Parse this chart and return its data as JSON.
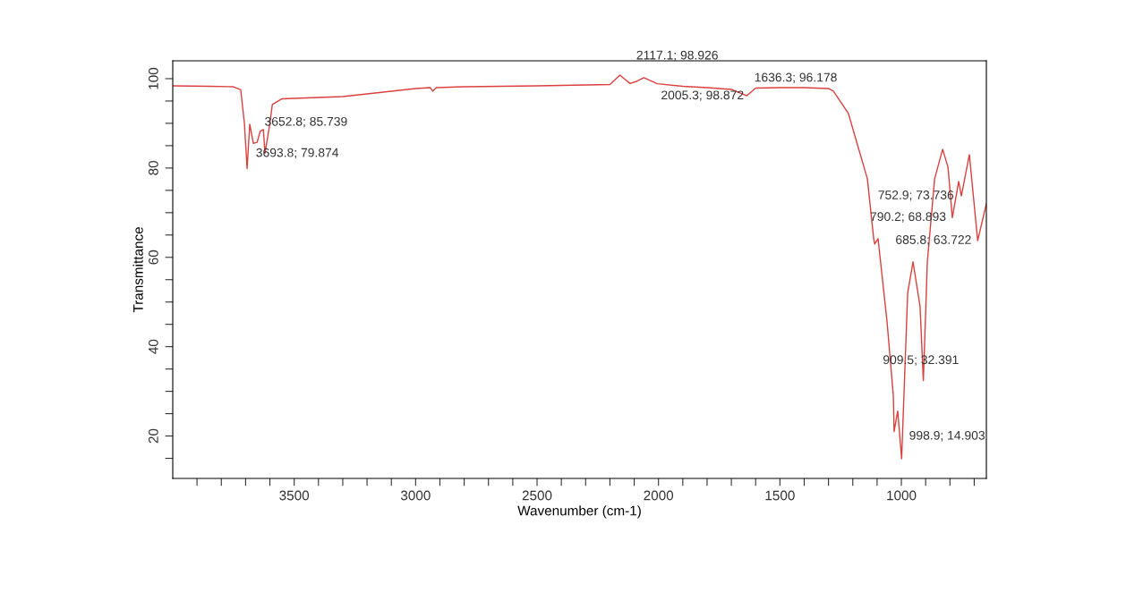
{
  "chart_data": {
    "type": "line",
    "xlabel": "Wavenumber (cm-1)",
    "ylabel": "Transmittance",
    "x": [
      4000,
      3850,
      3752,
      3720,
      3705,
      3693.8,
      3683,
      3668,
      3652.8,
      3640,
      3627,
      3620,
      3600,
      3590,
      3550,
      3500,
      3300,
      3100,
      3000,
      2940,
      2930,
      2915,
      2800,
      2500,
      2300,
      2200,
      2159,
      2117.1,
      2090,
      2060,
      2005.3,
      1900,
      1800,
      1700,
      1636.3,
      1600,
      1500,
      1400,
      1300,
      1280,
      1218,
      1140,
      1114,
      1110,
      1096,
      1059,
      1033,
      1030,
      1015,
      998.9,
      974,
      952,
      923,
      909.5,
      893,
      863,
      830,
      808,
      790.2,
      764,
      752.9,
      720,
      685.8,
      650
    ],
    "series": [
      {
        "color": "#d9413f",
        "values": [
          98.4,
          98.3,
          98.2,
          97.5,
          90,
          79.874,
          89.8,
          85.5,
          85.739,
          88.2,
          88.6,
          83.3,
          90,
          94.2,
          95.5,
          95.6,
          96,
          97.2,
          97.8,
          98,
          97.2,
          98,
          98.2,
          98.4,
          98.6,
          98.7,
          100.8,
          98.926,
          99.4,
          100.2,
          98.872,
          98.3,
          98,
          97.6,
          96.178,
          97.9,
          98,
          98,
          97.8,
          97.2,
          92.2,
          77.6,
          64.2,
          63,
          64.2,
          45.6,
          29,
          21,
          25.6,
          14.903,
          52,
          59,
          49,
          32.391,
          59,
          77.6,
          84.2,
          80.2,
          68.893,
          77,
          73.736,
          83,
          63.722,
          72
        ]
      }
    ],
    "xlim": [
      4000,
      650
    ],
    "ylim": [
      10.5,
      104
    ],
    "xticks": [
      {
        "value": 3900,
        "label": null
      },
      {
        "value": 3800,
        "label": null
      },
      {
        "value": 3700,
        "label": null
      },
      {
        "value": 3600,
        "label": null
      },
      3500,
      {
        "value": 3400,
        "label": null
      },
      {
        "value": 3300,
        "label": null
      },
      {
        "value": 3200,
        "label": null
      },
      {
        "value": 3100,
        "label": null
      },
      3000,
      {
        "value": 2900,
        "label": null
      },
      {
        "value": 2800,
        "label": null
      },
      {
        "value": 2700,
        "label": null
      },
      {
        "value": 2600,
        "label": null
      },
      2500,
      {
        "value": 2400,
        "label": null
      },
      {
        "value": 2300,
        "label": null
      },
      {
        "value": 2200,
        "label": null
      },
      {
        "value": 2100,
        "label": null
      },
      2000,
      {
        "value": 1900,
        "label": null
      },
      {
        "value": 1800,
        "label": null
      },
      {
        "value": 1700,
        "label": null
      },
      {
        "value": 1600,
        "label": null
      },
      1500,
      {
        "value": 1400,
        "label": null
      },
      {
        "value": 1300,
        "label": null
      },
      {
        "value": 1200,
        "label": null
      },
      {
        "value": 1100,
        "label": null
      },
      1000,
      {
        "value": 900,
        "label": null
      },
      {
        "value": 800,
        "label": null
      },
      {
        "value": 700,
        "label": null
      }
    ],
    "yticks": [
      {
        "value": 15,
        "label": null
      },
      20,
      {
        "value": 25,
        "label": null
      },
      {
        "value": 30,
        "label": null
      },
      {
        "value": 35,
        "label": null
      },
      40,
      {
        "value": 45,
        "label": null
      },
      {
        "value": 50,
        "label": null
      },
      {
        "value": 55,
        "label": null
      },
      60,
      {
        "value": 65,
        "label": null
      },
      {
        "value": 70,
        "label": null
      },
      {
        "value": 75,
        "label": null
      },
      80,
      {
        "value": 85,
        "label": null
      },
      {
        "value": 90,
        "label": null
      },
      {
        "value": 95,
        "label": null
      },
      100
    ],
    "annotations": [
      {
        "text": "3693.8; 79.874",
        "x": 3693.8,
        "y": 79.874
      },
      {
        "text": "3652.8; 85.739",
        "x": 3652.8,
        "y": 85.739
      },
      {
        "text": "2117.1; 98.926",
        "x": 2117.1,
        "y": 98.926
      },
      {
        "text": "2005.3; 98.872",
        "x": 2005.3,
        "y": 98.872
      },
      {
        "text": "1636.3; 96.178",
        "x": 1636.3,
        "y": 96.178
      },
      {
        "text": "752.9; 73.736",
        "x": 752.9,
        "y": 73.736
      },
      {
        "text": "790.2; 68.893",
        "x": 790.2,
        "y": 68.893
      },
      {
        "text": "685.8; 63.722",
        "x": 685.8,
        "y": 63.722
      },
      {
        "text": "909.5; 32.391",
        "x": 909.5,
        "y": 32.391
      },
      {
        "text": "998.9; 14.903",
        "x": 998.9,
        "y": 14.903
      }
    ],
    "grid": false,
    "legend": false,
    "marker": "none",
    "line_style": "solid"
  }
}
